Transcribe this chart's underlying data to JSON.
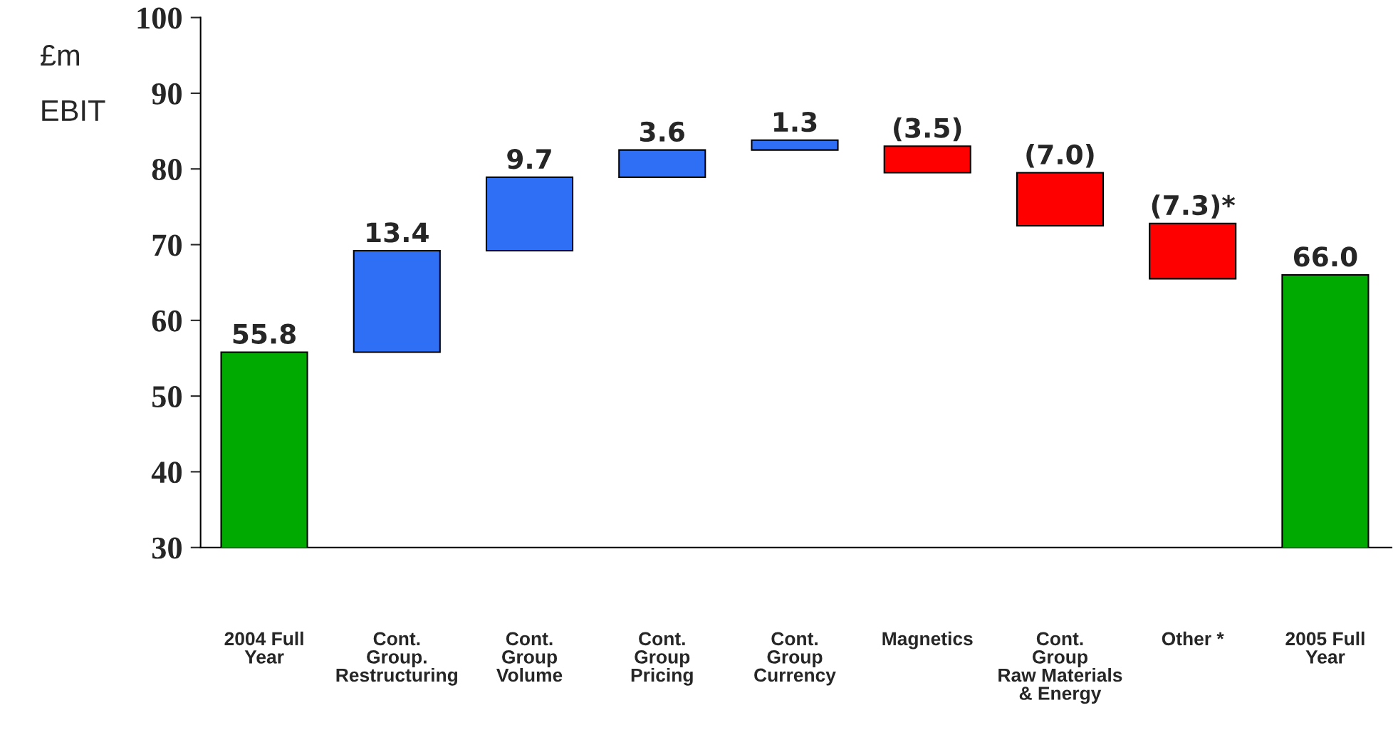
{
  "chart_data": {
    "type": "bar",
    "ylabel": "£m\n\nEBIT",
    "categories": [
      "2004 Full\nYear",
      "Cont.\nGroup.\nRestructuring",
      "Cont.\nGroup\nVolume",
      "Cont.\nGroup\nPricing",
      "Cont.\nGroup\nCurrency",
      "Magnetics",
      "Cont.\nGroup\nRaw Materials\n& Energy",
      "Other *",
      "2005 Full\nYear"
    ],
    "values": [
      55.8,
      13.4,
      9.7,
      3.6,
      1.3,
      -3.5,
      -7.0,
      -7.3,
      66.0
    ],
    "base": [
      0,
      55.8,
      69.2,
      78.9,
      82.5,
      83.0,
      79.5,
      72.8,
      0
    ],
    "colors": [
      "#00aa00",
      "#2e6ff5",
      "#2e6ff5",
      "#2e6ff5",
      "#2e6ff5",
      "#ff0000",
      "#ff0000",
      "#ff0000",
      "#00aa00"
    ],
    "value_labels": [
      "55.8",
      "13.4",
      "9.7",
      "3.6",
      "1.3",
      "(3.5)",
      "(7.0)",
      "(7.3)*",
      "66.0"
    ],
    "ylim": [
      30,
      100
    ],
    "yticks": [
      30,
      40,
      50,
      60,
      70,
      80,
      90,
      100
    ],
    "grid": false,
    "legend": false
  }
}
